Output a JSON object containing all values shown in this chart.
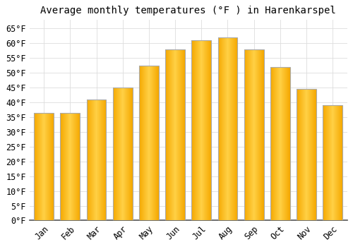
{
  "title": "Average monthly temperatures (°F ) in Harenkarspel",
  "months": [
    "Jan",
    "Feb",
    "Mar",
    "Apr",
    "May",
    "Jun",
    "Jul",
    "Aug",
    "Sep",
    "Oct",
    "Nov",
    "Dec"
  ],
  "values": [
    36.5,
    36.5,
    41.0,
    45.0,
    52.5,
    58.0,
    61.0,
    62.0,
    58.0,
    52.0,
    44.5,
    39.0
  ],
  "bar_color_center": "#FFD045",
  "bar_color_edge": "#F5A800",
  "bar_border_color": "#AAAAAA",
  "background_color": "#FFFFFF",
  "grid_color": "#DDDDDD",
  "ylim": [
    0,
    68
  ],
  "yticks": [
    0,
    5,
    10,
    15,
    20,
    25,
    30,
    35,
    40,
    45,
    50,
    55,
    60,
    65
  ],
  "title_fontsize": 10,
  "tick_fontsize": 8.5,
  "bar_width": 0.75
}
